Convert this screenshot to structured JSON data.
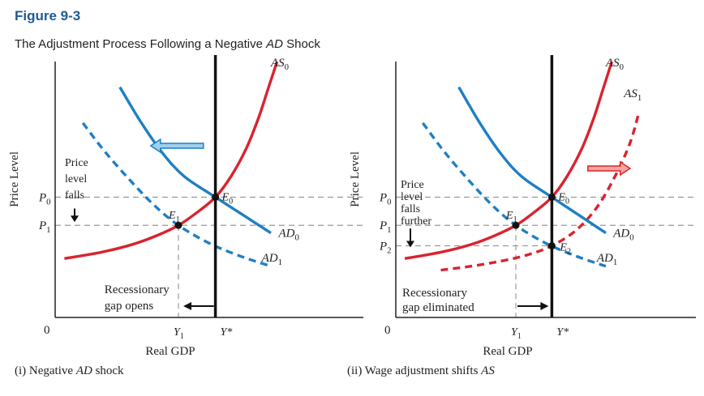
{
  "figure": {
    "number": "Figure 9-3",
    "title_prefix": "The Adjustment Process Following a Negative ",
    "title_italic": "AD",
    "title_suffix": " Shock"
  },
  "colors": {
    "ad": "#1f7fc4",
    "as": "#d9232e",
    "vertical": "#111111",
    "arrow_fill": "#9fcfee",
    "arrow_fill_right": "#f2a79b"
  },
  "chart_data": [
    {
      "type": "line",
      "panel": "(i) Negative AD shock",
      "caption_prefix": "(i) Negative ",
      "caption_italic": "AD",
      "caption_suffix": " shock",
      "xlabel": "Real GDP",
      "ylabel": "Price Level",
      "origin_label": "0",
      "xlim": [
        0,
        10
      ],
      "ylim": [
        0,
        10
      ],
      "x_ticks": [
        {
          "label": "Y1",
          "x": 4.0
        },
        {
          "label": "Y*",
          "x": 5.2
        }
      ],
      "y_ticks": [
        {
          "label": "P0",
          "y": 4.7
        },
        {
          "label": "P1",
          "y": 3.6
        }
      ],
      "series": [
        {
          "name": "AS0",
          "style": "solid",
          "color": "as",
          "x": [
            0.3,
            1.5,
            2.5,
            3.3,
            4.0,
            4.6,
            5.2,
            5.7,
            6.2,
            6.6,
            6.9,
            7.2
          ],
          "y": [
            2.3,
            2.55,
            2.85,
            3.2,
            3.6,
            4.1,
            4.7,
            5.5,
            6.6,
            7.8,
            8.9,
            10.0
          ]
        },
        {
          "name": "AD0",
          "style": "solid",
          "color": "ad",
          "x": [
            2.1,
            2.8,
            3.5,
            4.2,
            5.2,
            6.1,
            7.0
          ],
          "y": [
            9.0,
            7.6,
            6.4,
            5.5,
            4.7,
            4.0,
            3.3
          ]
        },
        {
          "name": "AD1",
          "style": "dashed",
          "color": "ad",
          "x": [
            0.9,
            1.6,
            2.4,
            3.2,
            4.0,
            5.0,
            6.0,
            7.0
          ],
          "y": [
            7.6,
            6.5,
            5.4,
            4.4,
            3.6,
            2.9,
            2.4,
            2.0
          ]
        },
        {
          "name": "Y*",
          "style": "vertical",
          "color": "vertical",
          "x": [
            5.2,
            5.2
          ],
          "y": [
            0,
            10
          ]
        }
      ],
      "points": [
        {
          "name": "E0",
          "x": 5.2,
          "y": 4.7
        },
        {
          "name": "E1",
          "x": 4.0,
          "y": 3.6
        }
      ],
      "annotations": {
        "price_level_falls": [
          "Price",
          "level",
          "falls"
        ],
        "gap": [
          "Recessionary",
          "gap opens"
        ]
      }
    },
    {
      "type": "line",
      "panel": "(ii) Wage adjustment shifts AS",
      "caption_prefix": "(ii) Wage adjustment shifts ",
      "caption_italic": "AS",
      "caption_suffix": "",
      "xlabel": "Real GDP",
      "ylabel": "Price Level",
      "origin_label": "0",
      "xlim": [
        0,
        10
      ],
      "ylim": [
        0,
        10
      ],
      "x_ticks": [
        {
          "label": "Y1",
          "x": 4.0
        },
        {
          "label": "Y*",
          "x": 5.2
        }
      ],
      "y_ticks": [
        {
          "label": "P0",
          "y": 4.7
        },
        {
          "label": "P1",
          "y": 3.6
        },
        {
          "label": "P2",
          "y": 2.8
        }
      ],
      "series": [
        {
          "name": "AS0",
          "style": "solid",
          "color": "as",
          "x": [
            0.3,
            1.5,
            2.5,
            3.3,
            4.0,
            4.6,
            5.2,
            5.7,
            6.2,
            6.6,
            6.9,
            7.2
          ],
          "y": [
            2.3,
            2.55,
            2.85,
            3.2,
            3.6,
            4.1,
            4.7,
            5.5,
            6.6,
            7.8,
            8.9,
            10.0
          ]
        },
        {
          "name": "AS1",
          "style": "dashed",
          "color": "as",
          "x": [
            1.5,
            2.5,
            3.5,
            4.4,
            5.2,
            6.0,
            6.7,
            7.3,
            7.8,
            8.1
          ],
          "y": [
            1.85,
            2.0,
            2.2,
            2.45,
            2.8,
            3.4,
            4.3,
            5.5,
            6.8,
            8.0
          ]
        },
        {
          "name": "AD0",
          "style": "solid",
          "color": "ad",
          "x": [
            2.1,
            2.8,
            3.5,
            4.2,
            5.2,
            6.1,
            7.0
          ],
          "y": [
            9.0,
            7.6,
            6.4,
            5.5,
            4.7,
            4.0,
            3.3
          ]
        },
        {
          "name": "AD1",
          "style": "dashed",
          "color": "ad",
          "x": [
            0.9,
            1.6,
            2.4,
            3.2,
            4.0,
            5.0,
            6.0,
            7.0
          ],
          "y": [
            7.6,
            6.5,
            5.4,
            4.4,
            3.6,
            2.9,
            2.4,
            2.0
          ]
        },
        {
          "name": "Y*",
          "style": "vertical",
          "color": "vertical",
          "x": [
            5.2,
            5.2
          ],
          "y": [
            0,
            10
          ]
        }
      ],
      "points": [
        {
          "name": "E0",
          "x": 5.2,
          "y": 4.7
        },
        {
          "name": "E1",
          "x": 4.0,
          "y": 3.6
        },
        {
          "name": "E2",
          "x": 5.2,
          "y": 2.8
        }
      ],
      "annotations": {
        "price_level_falls": [
          "Price",
          "level",
          "falls",
          "further"
        ],
        "gap": [
          "Recessionary",
          "gap eliminated"
        ]
      }
    }
  ]
}
